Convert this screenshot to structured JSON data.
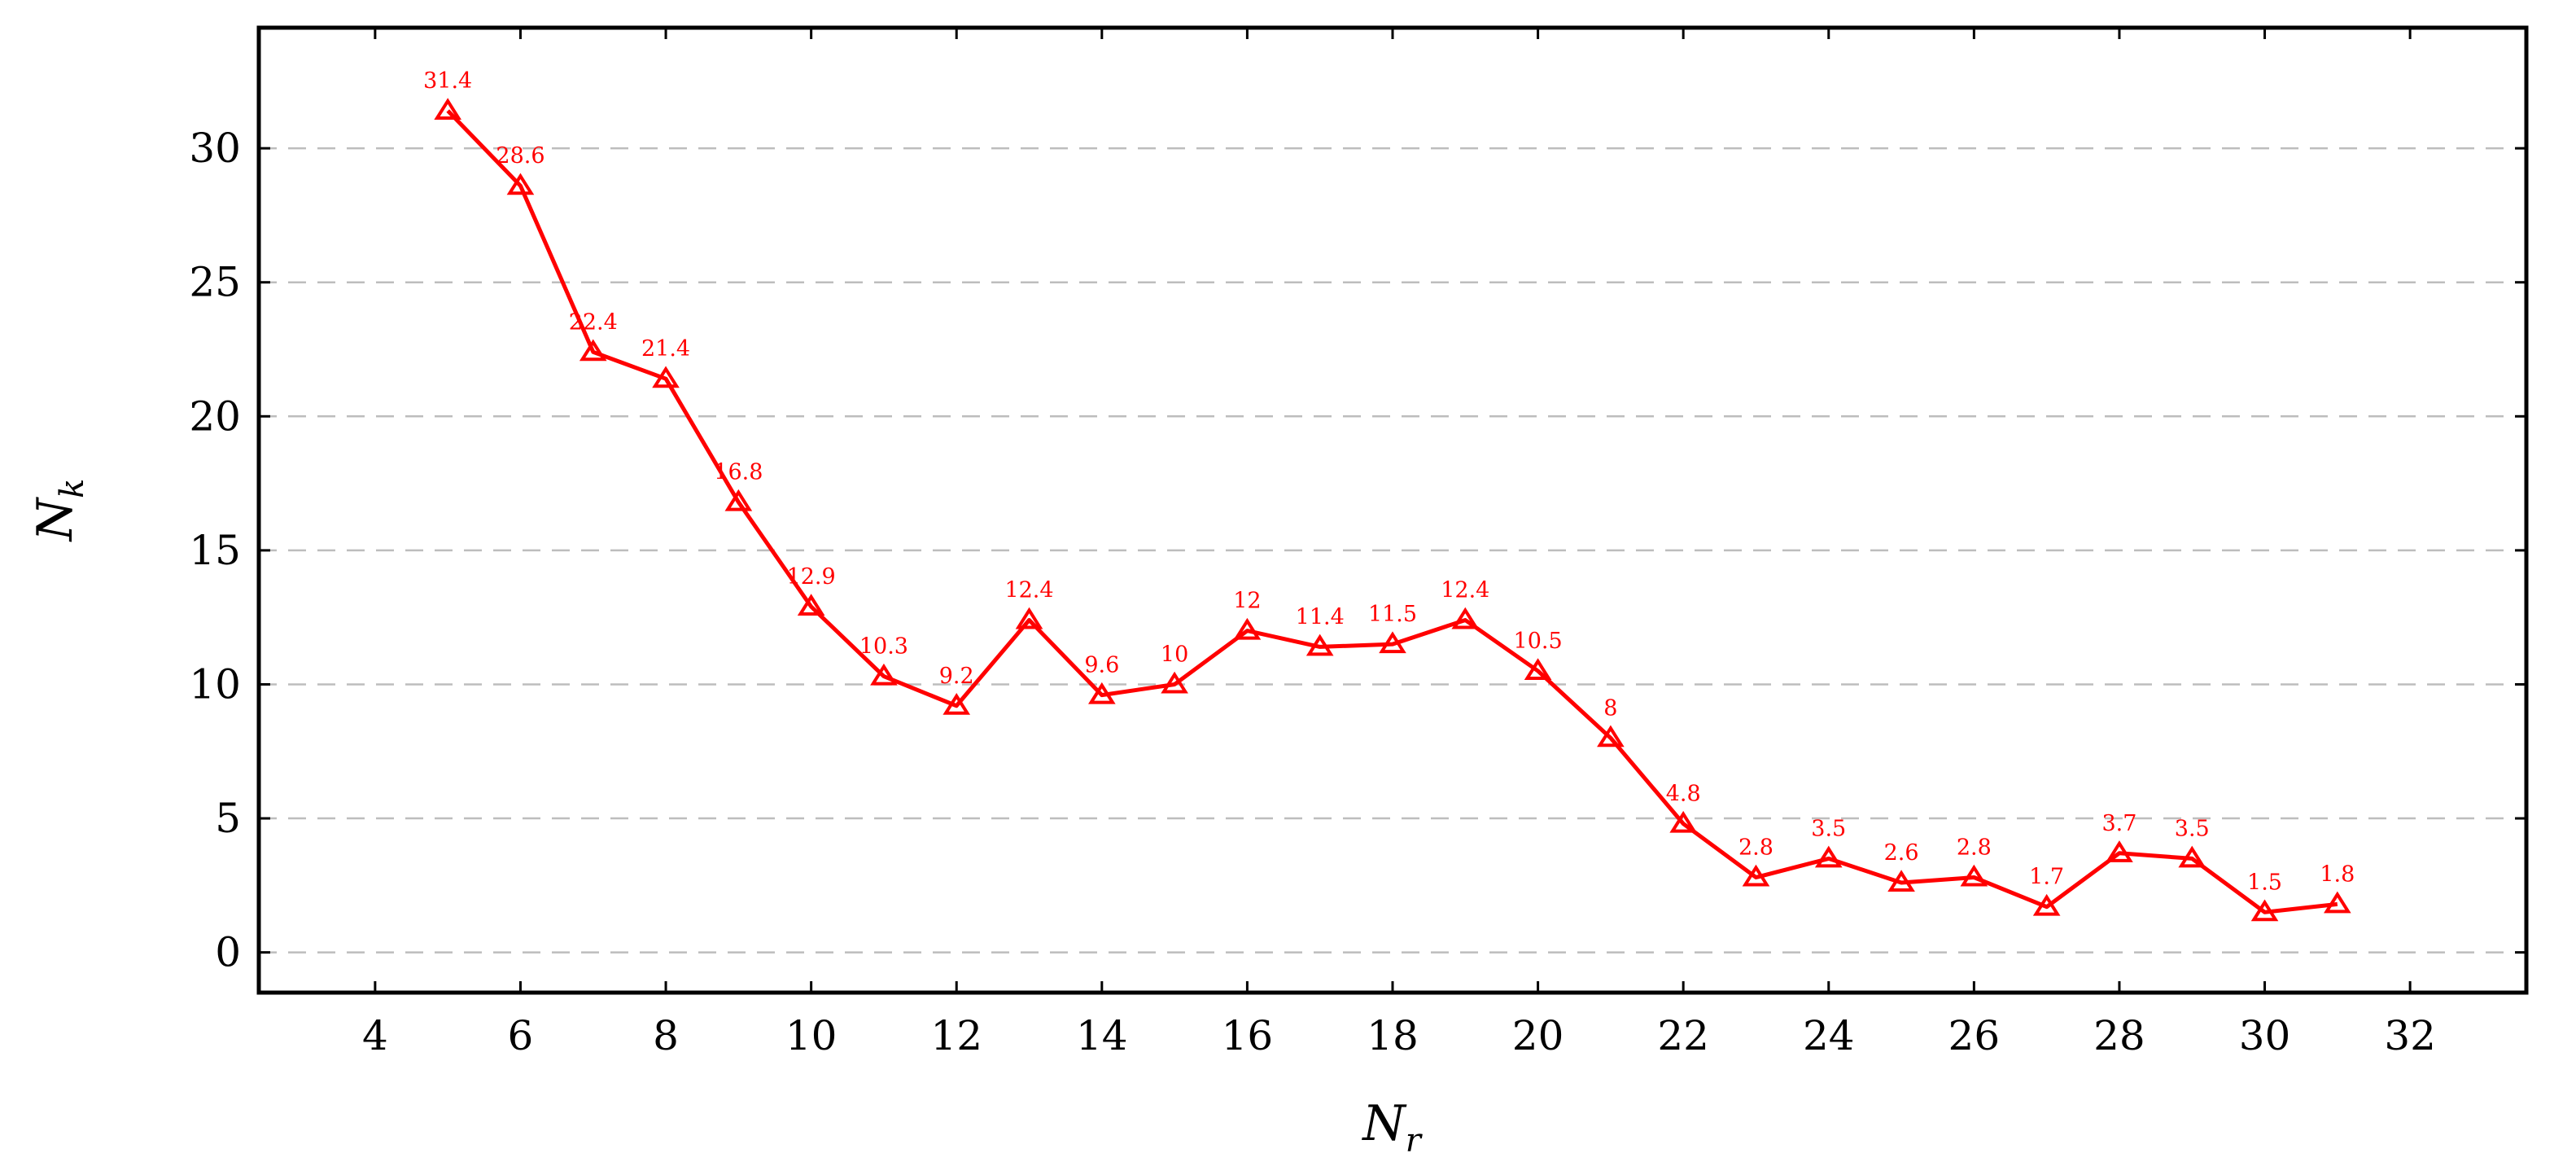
{
  "chart_data": {
    "type": "line",
    "title": "",
    "xlabel_main": "N",
    "xlabel_sub": "r",
    "ylabel_main": "N",
    "ylabel_sub": "k",
    "xlim": [
      2.4,
      33.6
    ],
    "ylim": [
      -1.5,
      34.5
    ],
    "xticks": [
      4,
      6,
      8,
      10,
      12,
      14,
      16,
      18,
      20,
      22,
      24,
      26,
      28,
      30,
      32
    ],
    "yticks": [
      0,
      5,
      10,
      15,
      20,
      25,
      30
    ],
    "grid": "horizontal dashed",
    "marker": "triangle",
    "color": "#ff0000",
    "series": [
      {
        "x": [
          5,
          6,
          7,
          8,
          9,
          10,
          11,
          12,
          13,
          14,
          15,
          16,
          17,
          18,
          19,
          20,
          21,
          22,
          23,
          24,
          25,
          26,
          27,
          28,
          29,
          30,
          31
        ],
        "values": [
          31.4,
          28.6,
          22.4,
          21.4,
          16.8,
          12.9,
          10.3,
          9.2,
          12.4,
          9.6,
          10,
          12,
          11.4,
          11.5,
          12.4,
          10.5,
          8,
          4.8,
          2.8,
          3.5,
          2.6,
          2.8,
          1.7,
          3.7,
          3.5,
          1.5,
          1.8
        ],
        "labels": [
          "31.4",
          "28.6",
          "22.4",
          "21.4",
          "16.8",
          "12.9",
          "10.3",
          "9.2",
          "12.4",
          "9.6",
          "10",
          "12",
          "11.4",
          "11.5",
          "12.4",
          "10.5",
          "8",
          "4.8",
          "2.8",
          "3.5",
          "2.6",
          "2.8",
          "1.7",
          "3.7",
          "3.5",
          "1.5",
          "1.8"
        ]
      }
    ]
  }
}
